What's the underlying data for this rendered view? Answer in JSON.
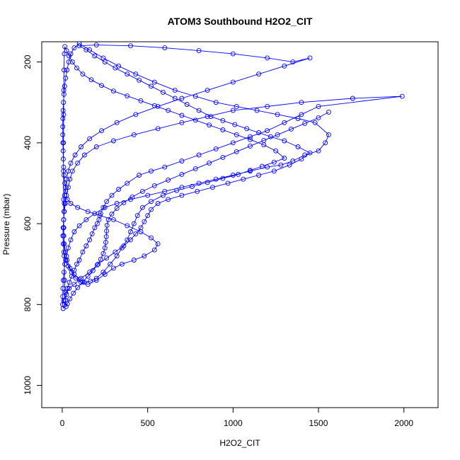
{
  "chart_data": {
    "type": "line",
    "title": "ATOM3 Southbound H2O2_CIT",
    "xlabel": "H2O2_CIT",
    "ylabel": "Pressure (mbar)",
    "xlim": [
      -120,
      2200
    ],
    "ylim": [
      1055,
      150
    ],
    "y_reversed": true,
    "x_ticks": [
      0,
      500,
      1000,
      1500,
      2000
    ],
    "y_ticks": [
      200,
      400,
      600,
      800,
      1000
    ],
    "x_tick_labels": [
      "0",
      "500",
      "1000",
      "1500",
      "2000"
    ],
    "y_tick_labels": [
      "200",
      "400",
      "600",
      "800",
      "1000"
    ],
    "grid": false,
    "legend": "none",
    "marker": "open-circle",
    "series_color": "#0000ff",
    "series": [
      {
        "points": [
          [
            5,
            810
          ],
          [
            12,
            800
          ],
          [
            18,
            790
          ],
          [
            25,
            775
          ],
          [
            30,
            760
          ],
          [
            42,
            745
          ],
          [
            55,
            730
          ],
          [
            70,
            715
          ],
          [
            85,
            700
          ],
          [
            100,
            690
          ],
          [
            120,
            670
          ],
          [
            140,
            655
          ],
          [
            160,
            640
          ],
          [
            175,
            625
          ],
          [
            190,
            610
          ],
          [
            205,
            600
          ],
          [
            215,
            590
          ],
          [
            225,
            575
          ],
          [
            240,
            560
          ],
          [
            260,
            545
          ],
          [
            290,
            530
          ],
          [
            330,
            515
          ],
          [
            380,
            500
          ],
          [
            450,
            480
          ],
          [
            520,
            470
          ],
          [
            600,
            460
          ],
          [
            700,
            445
          ],
          [
            800,
            430
          ],
          [
            900,
            415
          ],
          [
            1000,
            400
          ],
          [
            1100,
            385
          ],
          [
            1200,
            370
          ],
          [
            1300,
            350
          ],
          [
            1400,
            330
          ],
          [
            1500,
            310
          ],
          [
            1990,
            285
          ],
          [
            1700,
            290
          ],
          [
            1400,
            300
          ],
          [
            1200,
            310
          ],
          [
            1000,
            320
          ],
          [
            850,
            335
          ],
          [
            700,
            350
          ],
          [
            560,
            365
          ],
          [
            420,
            380
          ],
          [
            300,
            395
          ],
          [
            200,
            410
          ],
          [
            130,
            430
          ],
          [
            90,
            450
          ],
          [
            60,
            470
          ],
          [
            45,
            490
          ],
          [
            35,
            510
          ],
          [
            25,
            530
          ],
          [
            18,
            550
          ],
          [
            12,
            570
          ],
          [
            8,
            590
          ],
          [
            5,
            610
          ],
          [
            4,
            630
          ],
          [
            6,
            650
          ],
          [
            10,
            670
          ],
          [
            20,
            690
          ],
          [
            35,
            705
          ],
          [
            55,
            720
          ],
          [
            80,
            735
          ],
          [
            110,
            745
          ],
          [
            150,
            750
          ],
          [
            200,
            740
          ],
          [
            250,
            725
          ],
          [
            300,
            710
          ],
          [
            350,
            700
          ],
          [
            420,
            690
          ],
          [
            480,
            680
          ],
          [
            540,
            665
          ],
          [
            560,
            650
          ],
          [
            520,
            635
          ],
          [
            460,
            620
          ],
          [
            380,
            605
          ],
          [
            300,
            590
          ],
          [
            220,
            580
          ],
          [
            150,
            570
          ],
          [
            90,
            560
          ],
          [
            50,
            550
          ],
          [
            30,
            540
          ],
          [
            20,
            520
          ],
          [
            15,
            500
          ],
          [
            10,
            480
          ],
          [
            8,
            460
          ],
          [
            6,
            440
          ],
          [
            5,
            420
          ],
          [
            4,
            400
          ],
          [
            3,
            380
          ],
          [
            3,
            360
          ],
          [
            4,
            340
          ],
          [
            5,
            320
          ],
          [
            7,
            300
          ],
          [
            10,
            280
          ],
          [
            14,
            260
          ],
          [
            20,
            240
          ],
          [
            28,
            220
          ],
          [
            38,
            200
          ],
          [
            50,
            180
          ],
          [
            70,
            165
          ],
          [
            100,
            155
          ],
          [
            160,
            170
          ],
          [
            240,
            190
          ],
          [
            330,
            210
          ],
          [
            430,
            230
          ],
          [
            540,
            250
          ],
          [
            660,
            270
          ],
          [
            780,
            285
          ],
          [
            900,
            300
          ],
          [
            1020,
            310
          ],
          [
            1140,
            320
          ],
          [
            1260,
            330
          ],
          [
            1380,
            340
          ],
          [
            1480,
            350
          ],
          [
            1560,
            380
          ],
          [
            1540,
            400
          ],
          [
            1500,
            420
          ],
          [
            1420,
            430
          ],
          [
            1350,
            445
          ],
          [
            1280,
            455
          ],
          [
            1200,
            460
          ],
          [
            1100,
            470
          ],
          [
            1000,
            480
          ],
          [
            900,
            490
          ],
          [
            800,
            500
          ],
          [
            700,
            510
          ],
          [
            600,
            520
          ],
          [
            500,
            530
          ],
          [
            400,
            540
          ],
          [
            320,
            550
          ],
          [
            250,
            560
          ],
          [
            190,
            575
          ],
          [
            140,
            590
          ],
          [
            100,
            605
          ],
          [
            70,
            620
          ],
          [
            50,
            640
          ],
          [
            35,
            660
          ],
          [
            25,
            680
          ],
          [
            15,
            700
          ],
          [
            10,
            720
          ],
          [
            6,
            740
          ],
          [
            4,
            760
          ],
          [
            3,
            780
          ],
          [
            2,
            800
          ],
          [
            8,
            790
          ],
          [
            20,
            770
          ],
          [
            40,
            760
          ],
          [
            70,
            750
          ],
          [
            110,
            735
          ],
          [
            160,
            720
          ],
          [
            210,
            700
          ],
          [
            260,
            685
          ],
          [
            310,
            670
          ],
          [
            360,
            655
          ],
          [
            400,
            640
          ],
          [
            430,
            625
          ],
          [
            460,
            610
          ],
          [
            480,
            595
          ],
          [
            500,
            580
          ],
          [
            520,
            565
          ],
          [
            560,
            550
          ],
          [
            620,
            540
          ],
          [
            700,
            530
          ],
          [
            790,
            520
          ],
          [
            880,
            510
          ],
          [
            970,
            500
          ],
          [
            1060,
            490
          ],
          [
            1150,
            480
          ],
          [
            1240,
            470
          ],
          [
            1330,
            455
          ],
          [
            1400,
            440
          ],
          [
            1450,
            425
          ],
          [
            1380,
            410
          ],
          [
            1300,
            395
          ],
          [
            1220,
            385
          ],
          [
            1150,
            375
          ],
          [
            1080,
            365
          ],
          [
            1010,
            355
          ],
          [
            940,
            345
          ],
          [
            870,
            335
          ],
          [
            800,
            320
          ],
          [
            730,
            305
          ],
          [
            660,
            290
          ],
          [
            590,
            275
          ],
          [
            520,
            260
          ],
          [
            450,
            245
          ],
          [
            380,
            230
          ],
          [
            310,
            215
          ],
          [
            250,
            200
          ],
          [
            190,
            185
          ],
          [
            140,
            170
          ],
          [
            100,
            160
          ],
          [
            200,
            158
          ],
          [
            400,
            160
          ],
          [
            600,
            165
          ],
          [
            800,
            172
          ],
          [
            1000,
            180
          ],
          [
            1200,
            190
          ],
          [
            1350,
            200
          ],
          [
            1450,
            190
          ],
          [
            1300,
            210
          ],
          [
            1150,
            230
          ],
          [
            1000,
            250
          ],
          [
            850,
            270
          ],
          [
            700,
            290
          ],
          [
            560,
            310
          ],
          [
            430,
            330
          ],
          [
            320,
            350
          ],
          [
            230,
            370
          ],
          [
            160,
            390
          ],
          [
            110,
            410
          ],
          [
            75,
            430
          ],
          [
            50,
            450
          ],
          [
            35,
            470
          ],
          [
            25,
            490
          ],
          [
            18,
            510
          ],
          [
            14,
            530
          ],
          [
            12,
            550
          ],
          [
            10,
            570
          ],
          [
            9,
            590
          ],
          [
            8,
            610
          ],
          [
            9,
            630
          ],
          [
            12,
            650
          ],
          [
            18,
            670
          ],
          [
            28,
            690
          ],
          [
            45,
            710
          ],
          [
            70,
            725
          ],
          [
            100,
            738
          ],
          [
            130,
            745
          ],
          [
            165,
            742
          ],
          [
            200,
            735
          ],
          [
            240,
            720
          ],
          [
            280,
            700
          ],
          [
            320,
            680
          ],
          [
            350,
            660
          ],
          [
            380,
            640
          ],
          [
            400,
            620
          ],
          [
            420,
            600
          ],
          [
            440,
            580
          ],
          [
            470,
            560
          ],
          [
            520,
            545
          ],
          [
            590,
            530
          ],
          [
            670,
            518
          ],
          [
            760,
            508
          ],
          [
            850,
            498
          ],
          [
            940,
            488
          ],
          [
            1030,
            478
          ],
          [
            1100,
            468
          ],
          [
            1170,
            458
          ],
          [
            1240,
            448
          ],
          [
            1300,
            438
          ],
          [
            1250,
            420
          ],
          [
            1180,
            405
          ],
          [
            1100,
            392
          ],
          [
            1020,
            380
          ],
          [
            940,
            368
          ],
          [
            860,
            356
          ],
          [
            780,
            344
          ],
          [
            700,
            332
          ],
          [
            620,
            320
          ],
          [
            540,
            308
          ],
          [
            460,
            296
          ],
          [
            380,
            284
          ],
          [
            300,
            272
          ],
          [
            230,
            258
          ],
          [
            170,
            244
          ],
          [
            120,
            230
          ],
          [
            85,
            215
          ],
          [
            60,
            200
          ],
          [
            40,
            185
          ],
          [
            25,
            172
          ],
          [
            15,
            162
          ],
          [
            12,
            180
          ],
          [
            10,
            220
          ],
          [
            9,
            270
          ],
          [
            8,
            330
          ],
          [
            7,
            400
          ],
          [
            7,
            470
          ],
          [
            8,
            540
          ],
          [
            9,
            610
          ],
          [
            11,
            680
          ],
          [
            14,
            740
          ],
          [
            18,
            790
          ],
          [
            22,
            805
          ],
          [
            30,
            798
          ],
          [
            45,
            786
          ],
          [
            65,
            772
          ],
          [
            90,
            758
          ],
          [
            120,
            744
          ],
          [
            150,
            730
          ],
          [
            180,
            716
          ],
          [
            205,
            702
          ],
          [
            225,
            688
          ],
          [
            240,
            674
          ],
          [
            250,
            660
          ],
          [
            255,
            646
          ],
          [
            258,
            632
          ],
          [
            260,
            618
          ],
          [
            262,
            604
          ],
          [
            270,
            590
          ],
          [
            290,
            576
          ],
          [
            320,
            562
          ],
          [
            360,
            548
          ],
          [
            410,
            534
          ],
          [
            470,
            520
          ],
          [
            540,
            506
          ],
          [
            620,
            492
          ],
          [
            700,
            478
          ],
          [
            780,
            464
          ],
          [
            860,
            450
          ],
          [
            940,
            436
          ],
          [
            1020,
            422
          ],
          [
            1100,
            408
          ],
          [
            1180,
            394
          ],
          [
            1260,
            380
          ],
          [
            1340,
            366
          ],
          [
            1420,
            352
          ],
          [
            1500,
            338
          ],
          [
            1560,
            324
          ]
        ]
      }
    ]
  }
}
